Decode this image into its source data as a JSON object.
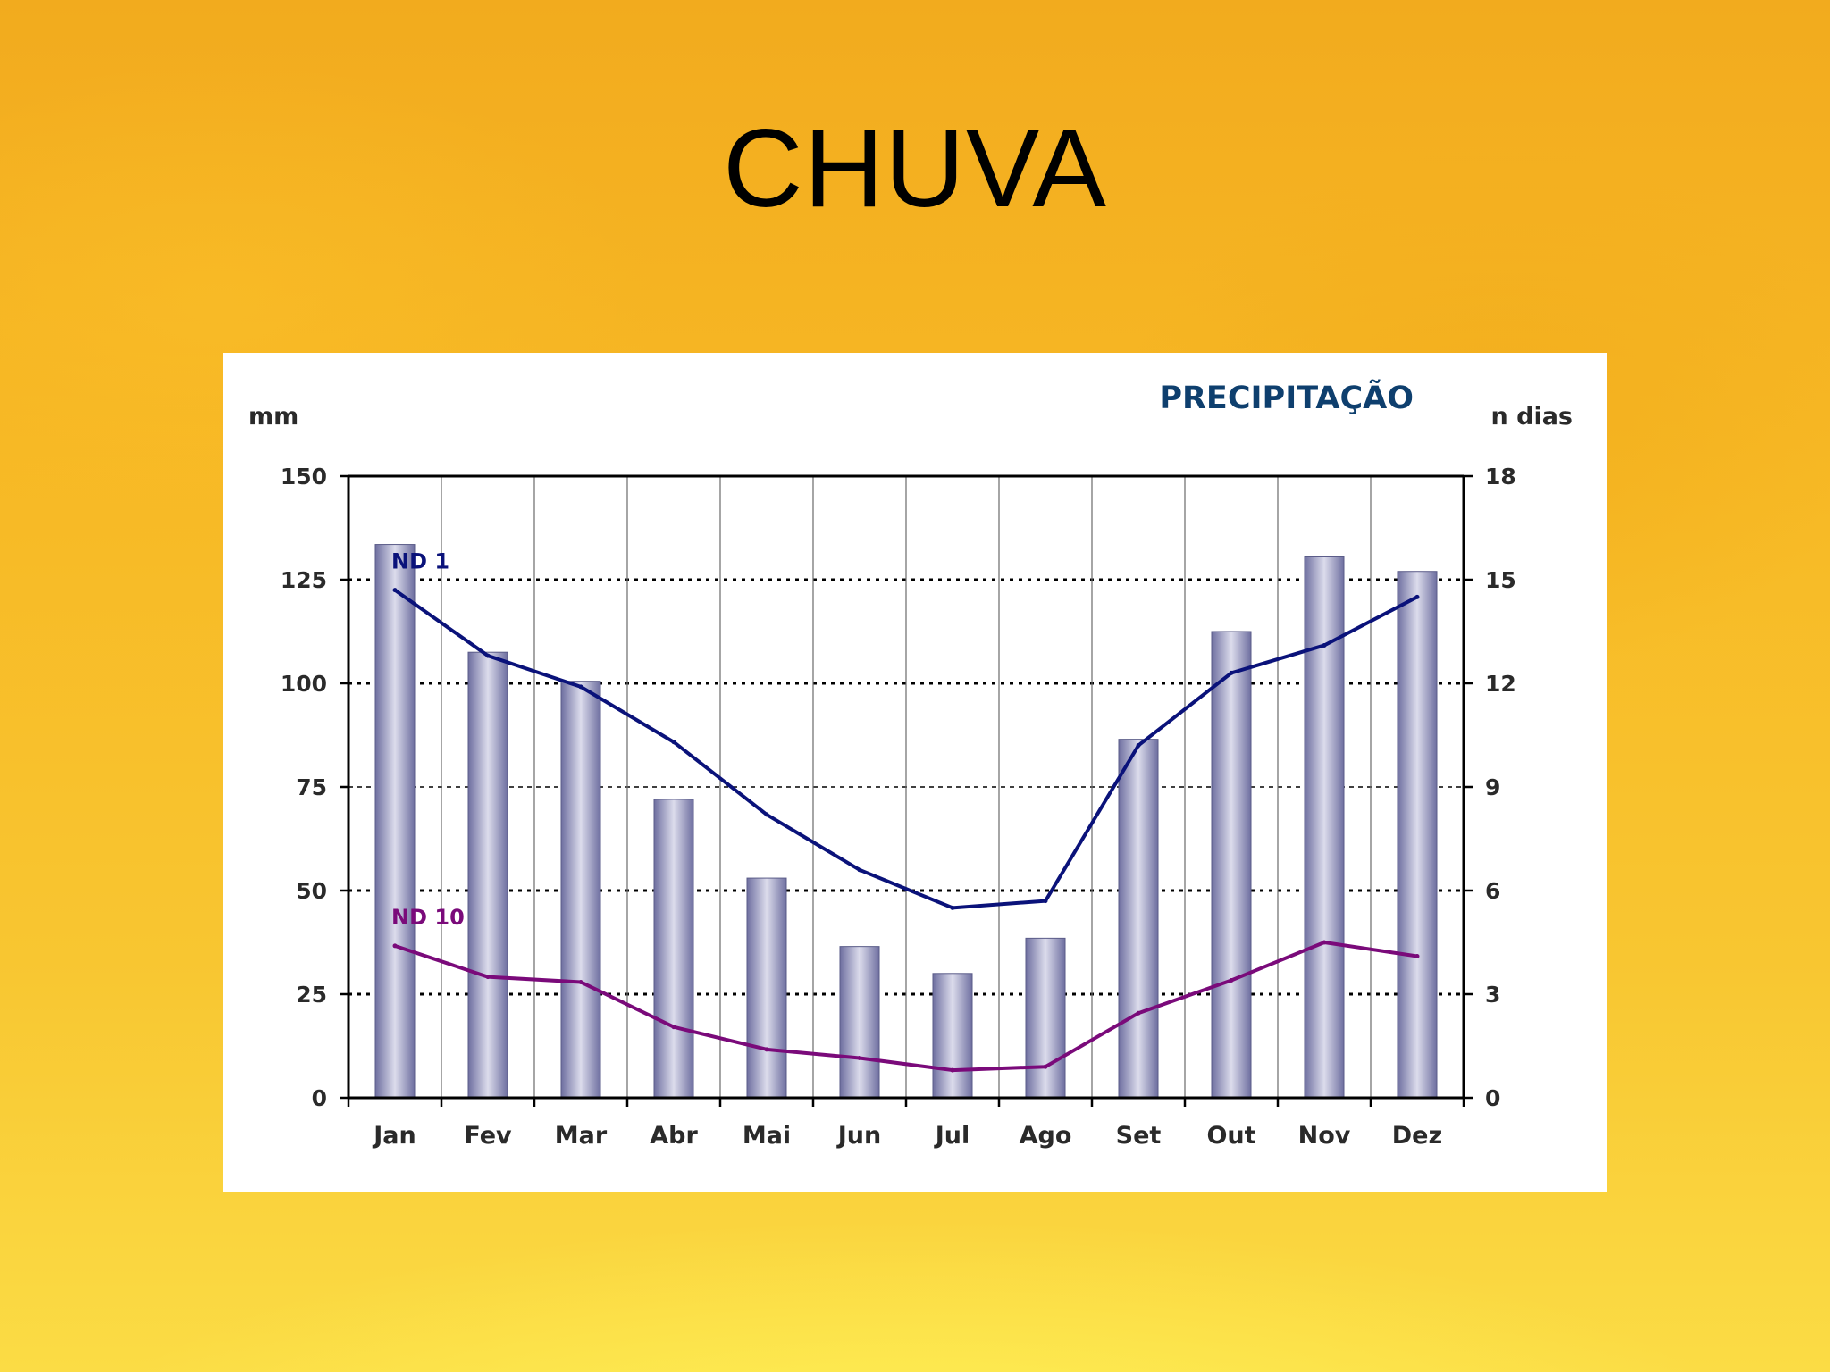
{
  "slide": {
    "title": "CHUVA"
  },
  "colors": {
    "bar_dark": "#6e6fa0",
    "bar_light": "#dcdcec",
    "line_nd1": "#0a127a",
    "line_nd10": "#7a0a7a",
    "title_color": "#0e3f6e",
    "axis": "#000000"
  },
  "chart_data": {
    "type": "bar",
    "title": "PRECIPITAÇÃO",
    "ylabel": "mm",
    "y2label": "n dias",
    "categories": [
      "Jan",
      "Fev",
      "Mar",
      "Abr",
      "Mai",
      "Jun",
      "Jul",
      "Ago",
      "Set",
      "Out",
      "Nov",
      "Dez"
    ],
    "ylim": [
      0,
      150
    ],
    "yticks": [
      "0",
      "25",
      "50",
      "75",
      "100",
      "125",
      "150"
    ],
    "y2lim": [
      0,
      18
    ],
    "y2ticks": [
      "0",
      "3",
      "6",
      "9",
      "12",
      "15",
      "18"
    ],
    "grid": "horizontal dotted",
    "bars": {
      "axis": "left",
      "values": [
        133.5,
        107.5,
        100.5,
        72,
        53,
        36.5,
        30,
        38.5,
        86.5,
        112.5,
        130.5,
        127
      ]
    },
    "series": [
      {
        "name": "ND 1",
        "type": "line",
        "axis": "right",
        "values": [
          14.7,
          12.8,
          11.9,
          10.3,
          8.2,
          6.6,
          5.5,
          5.7,
          10.2,
          12.3,
          13.1,
          14.5
        ]
      },
      {
        "name": "ND 10",
        "type": "line",
        "axis": "right",
        "values": [
          4.4,
          3.5,
          3.35,
          2.05,
          1.4,
          1.15,
          0.8,
          0.9,
          2.45,
          3.4,
          4.5,
          4.1
        ]
      }
    ]
  }
}
